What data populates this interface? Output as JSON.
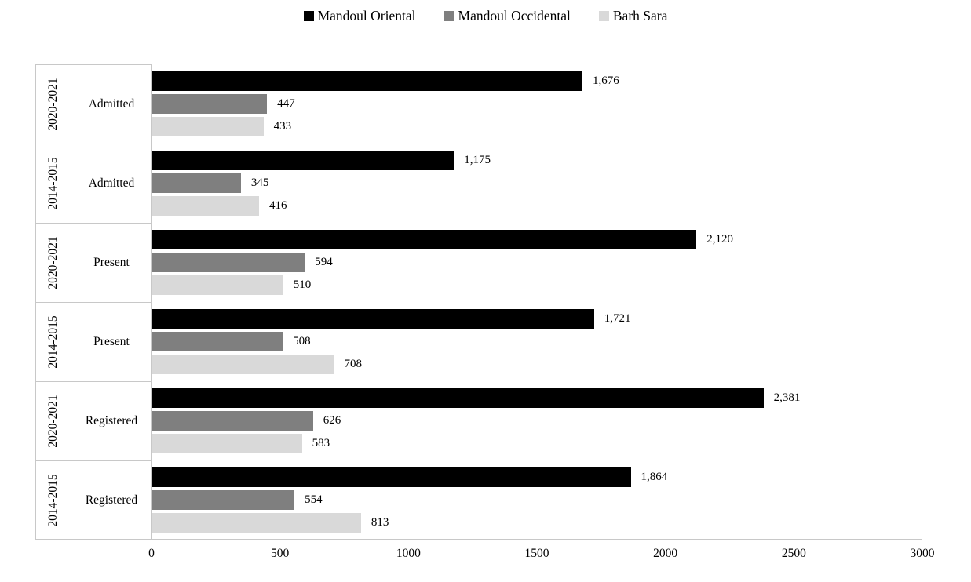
{
  "chart_data": {
    "type": "bar",
    "orientation": "horizontal",
    "title": "",
    "legend_position": "top",
    "grid": false,
    "x_axis": {
      "min": 0,
      "max": 3000,
      "tick_values": [
        0,
        500,
        1000,
        1500,
        2000,
        2500,
        3000
      ],
      "tick_labels": [
        "0",
        "500",
        "1000",
        "1500",
        "2000",
        "2500",
        "3000"
      ]
    },
    "series": [
      {
        "name": "Mandoul Oriental",
        "color": "#000000"
      },
      {
        "name": "Mandoul Occidental",
        "color": "#7F7F7F"
      },
      {
        "name": "Barh Sara",
        "color": "#D9D9D9"
      }
    ],
    "groups": [
      {
        "period": "2020-2021",
        "category": "Admitted",
        "values": [
          1676,
          447,
          433
        ],
        "labels": [
          "1,676",
          "447",
          "433"
        ]
      },
      {
        "period": "2014-2015",
        "category": "Admitted",
        "values": [
          1175,
          345,
          416
        ],
        "labels": [
          "1,175",
          "345",
          "416"
        ]
      },
      {
        "period": "2020-2021",
        "category": "Present",
        "values": [
          2120,
          594,
          510
        ],
        "labels": [
          "2,120",
          "594",
          "510"
        ]
      },
      {
        "period": "2014-2015",
        "category": "Present",
        "values": [
          1721,
          508,
          708
        ],
        "labels": [
          "1,721",
          "508",
          "708"
        ]
      },
      {
        "period": "2020-2021",
        "category": "Registered",
        "values": [
          2381,
          626,
          583
        ],
        "labels": [
          "2,381",
          "626",
          "583"
        ]
      },
      {
        "period": "2014-2015",
        "category": "Registered",
        "values": [
          1864,
          554,
          813
        ],
        "labels": [
          "1,864",
          "554",
          "813"
        ]
      }
    ]
  },
  "colors": {
    "background": "#FFFFFF",
    "axis_line": "#C8C8C8",
    "text": "#000000"
  }
}
